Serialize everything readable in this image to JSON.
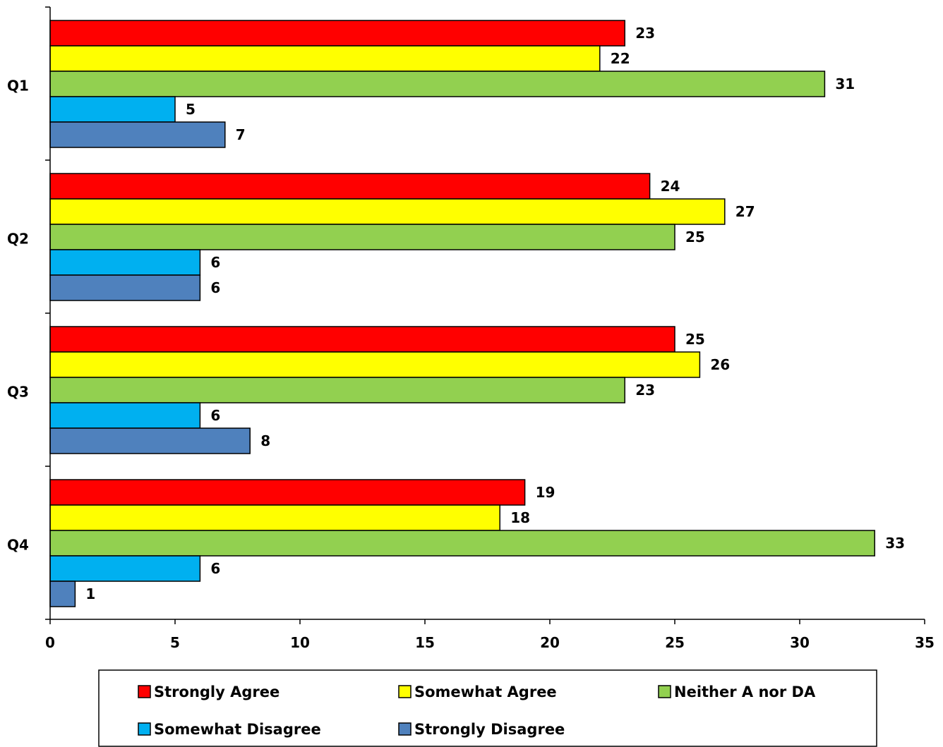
{
  "chart_data": {
    "type": "bar",
    "orientation": "horizontal",
    "categories": [
      "Q1",
      "Q2",
      "Q3",
      "Q4"
    ],
    "series": [
      {
        "name": "Strongly Agree",
        "color": "#ff0000",
        "values": [
          23,
          24,
          25,
          19
        ]
      },
      {
        "name": "Somewhat Agree",
        "color": "#ffff00",
        "values": [
          22,
          27,
          26,
          18
        ]
      },
      {
        "name": "Neither A nor DA",
        "color": "#92d050",
        "values": [
          31,
          25,
          23,
          33
        ]
      },
      {
        "name": "Somewhat Disagree",
        "color": "#00b0f0",
        "values": [
          5,
          6,
          6,
          6
        ]
      },
      {
        "name": "Strongly Disagree",
        "color": "#4f81bd",
        "values": [
          7,
          6,
          8,
          1
        ]
      }
    ],
    "xlim": [
      0,
      35
    ],
    "xticks": [
      "0",
      "5",
      "10",
      "15",
      "20",
      "25",
      "30",
      "35"
    ],
    "title": "",
    "xlabel": "",
    "ylabel": "",
    "grid": false,
    "data_labels": true,
    "legend_position": "bottom"
  }
}
